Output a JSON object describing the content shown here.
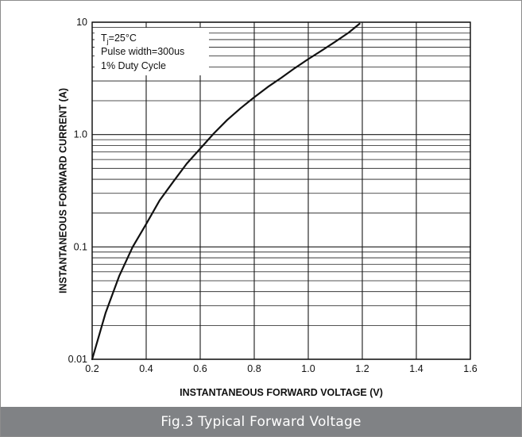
{
  "chart_data": {
    "type": "line",
    "title": "",
    "xlabel": "INSTANTANEOUS FORWARD VOLTAGE (V)",
    "ylabel": "INSTANTANEOUS FORWARD CURRENT (A)",
    "xlim": [
      0.2,
      1.6
    ],
    "ylim": [
      0.01,
      10
    ],
    "x_scale": "linear",
    "y_scale": "log",
    "grid": true,
    "x_ticks": [
      "0.2",
      "0.4",
      "0.6",
      "0.8",
      "1.0",
      "1.2",
      "1.4",
      "1.6"
    ],
    "y_ticks": [
      "0.01",
      "0.1",
      "1.0",
      "10"
    ],
    "legend_placement": "top-left",
    "annotations": {
      "line1_main": "T",
      "line1_sub": "j",
      "line1_rest": "=25°C",
      "line2": "Pulse width=300us",
      "line3": "1% Duty Cycle"
    },
    "series": [
      {
        "x": [
          0.2,
          0.25,
          0.3,
          0.35,
          0.4,
          0.45,
          0.5,
          0.55,
          0.6,
          0.65,
          0.7,
          0.75,
          0.8,
          0.85,
          0.9,
          0.95,
          1.0,
          1.05,
          1.1,
          1.15,
          1.19
        ],
        "y": [
          0.01,
          0.026,
          0.055,
          0.1,
          0.16,
          0.26,
          0.38,
          0.55,
          0.75,
          1.02,
          1.35,
          1.72,
          2.15,
          2.65,
          3.2,
          3.9,
          4.7,
          5.6,
          6.7,
          8.1,
          9.7
        ]
      }
    ],
    "line_color": "#111111",
    "grid_color": "#1a1a1a"
  },
  "figure_caption": "Fig.3 Typical Forward Voltage",
  "colors": {
    "caption_background": "#808285",
    "caption_text": "#ffffff",
    "frame_border": "#8c8c8c"
  }
}
